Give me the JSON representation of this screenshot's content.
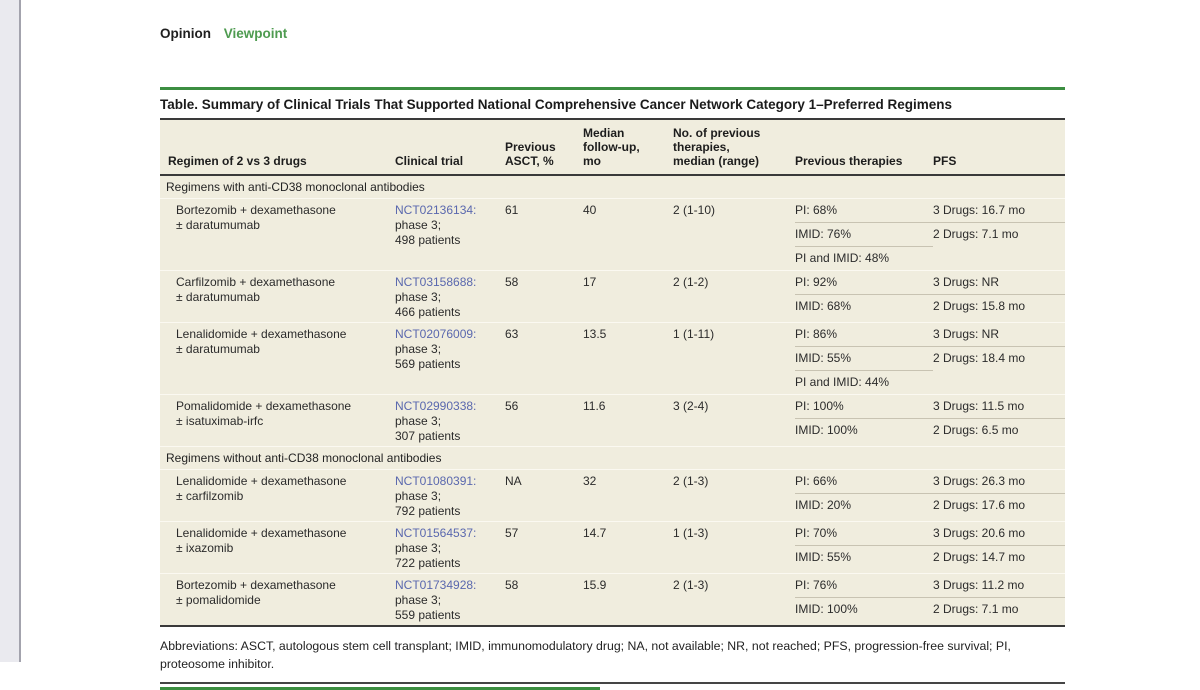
{
  "header": {
    "section": "Opinion",
    "subsection": "Viewpoint"
  },
  "table": {
    "title": "Table. Summary of Clinical Trials That Supported National Comprehensive Cancer Network Category 1–Preferred Regimens",
    "columns": [
      "Regimen of 2 vs 3 drugs",
      "Clinical trial",
      "Previous\nASCT, %",
      "Median\nfollow-up,\nmo",
      "No. of previous\ntherapies,\nmedian (range)",
      "Previous therapies",
      "PFS"
    ],
    "sections": [
      {
        "header": "Regimens with anti-CD38 monoclonal antibodies",
        "rows": [
          {
            "regimen": "Bortezomib + dexamethasone\n± daratumumab",
            "nct": "NCT02136134:",
            "trial_detail": "phase 3;\n498 patients",
            "previous_asct_pct": "61",
            "median_followup_mo": "40",
            "prior_therapies_median_range": "2 (1-10)",
            "previous_therapies": [
              "PI: 68%",
              "IMID: 76%",
              "PI and IMID: 48%"
            ],
            "pfs": [
              "3 Drugs: 16.7 mo",
              "2 Drugs: 7.1 mo"
            ]
          },
          {
            "regimen": "Carfilzomib + dexamethasone\n± daratumumab",
            "nct": "NCT03158688:",
            "trial_detail": "phase 3;\n466 patients",
            "previous_asct_pct": "58",
            "median_followup_mo": "17",
            "prior_therapies_median_range": "2 (1-2)",
            "previous_therapies": [
              "PI: 92%",
              "IMID: 68%"
            ],
            "pfs": [
              "3 Drugs: NR",
              "2 Drugs: 15.8 mo"
            ]
          },
          {
            "regimen": "Lenalidomide + dexamethasone\n± daratumumab",
            "nct": "NCT02076009:",
            "trial_detail": "phase 3;\n569 patients",
            "previous_asct_pct": "63",
            "median_followup_mo": "13.5",
            "prior_therapies_median_range": "1 (1-11)",
            "previous_therapies": [
              "PI: 86%",
              "IMID: 55%",
              "PI and IMID: 44%"
            ],
            "pfs": [
              "3 Drugs: NR",
              "2 Drugs: 18.4 mo"
            ]
          },
          {
            "regimen": "Pomalidomide + dexamethasone\n± isatuximab-irfc",
            "nct": "NCT02990338:",
            "trial_detail": "phase 3;\n307 patients",
            "previous_asct_pct": "56",
            "median_followup_mo": "11.6",
            "prior_therapies_median_range": "3 (2-4)",
            "previous_therapies": [
              "PI: 100%",
              "IMID: 100%"
            ],
            "pfs": [
              "3 Drugs: 11.5 mo",
              "2 Drugs: 6.5 mo"
            ]
          }
        ]
      },
      {
        "header": "Regimens without anti-CD38 monoclonal antibodies",
        "rows": [
          {
            "regimen": "Lenalidomide + dexamethasone\n± carfilzomib",
            "nct": "NCT01080391:",
            "trial_detail": "phase 3;\n792 patients",
            "previous_asct_pct": "NA",
            "median_followup_mo": "32",
            "prior_therapies_median_range": "2 (1-3)",
            "previous_therapies": [
              "PI: 66%",
              "IMID: 20%"
            ],
            "pfs": [
              "3 Drugs: 26.3 mo",
              "2 Drugs: 17.6 mo"
            ]
          },
          {
            "regimen": "Lenalidomide + dexamethasone\n± ixazomib",
            "nct": "NCT01564537:",
            "trial_detail": "phase 3;\n722 patients",
            "previous_asct_pct": "57",
            "median_followup_mo": "14.7",
            "prior_therapies_median_range": "1 (1-3)",
            "previous_therapies": [
              "PI: 70%",
              "IMID: 55%"
            ],
            "pfs": [
              "3 Drugs: 20.6 mo",
              "2 Drugs: 14.7 mo"
            ]
          },
          {
            "regimen": "Bortezomib + dexamethasone\n± pomalidomide",
            "nct": "NCT01734928:",
            "trial_detail": "phase 3;\n559 patients",
            "previous_asct_pct": "58",
            "median_followup_mo": "15.9",
            "prior_therapies_median_range": "2 (1-3)",
            "previous_therapies": [
              "PI: 76%",
              "IMID: 100%"
            ],
            "pfs": [
              "3 Drugs: 11.2 mo",
              "2 Drugs: 7.1 mo"
            ]
          }
        ]
      }
    ]
  },
  "footnote": "Abbreviations: ASCT, autologous stem cell transplant; IMID, immunomodulatory drug; NA, not available; NR, not reached; PFS, progression-free survival; PI, proteosome inhibitor.",
  "colors": {
    "green": "#3c8e41",
    "green_text": "#4e9b50",
    "link": "#5a68ae",
    "table_bg": "#f0edde",
    "rule_dark": "#3a3a3a",
    "text": "#2b2b2b"
  }
}
